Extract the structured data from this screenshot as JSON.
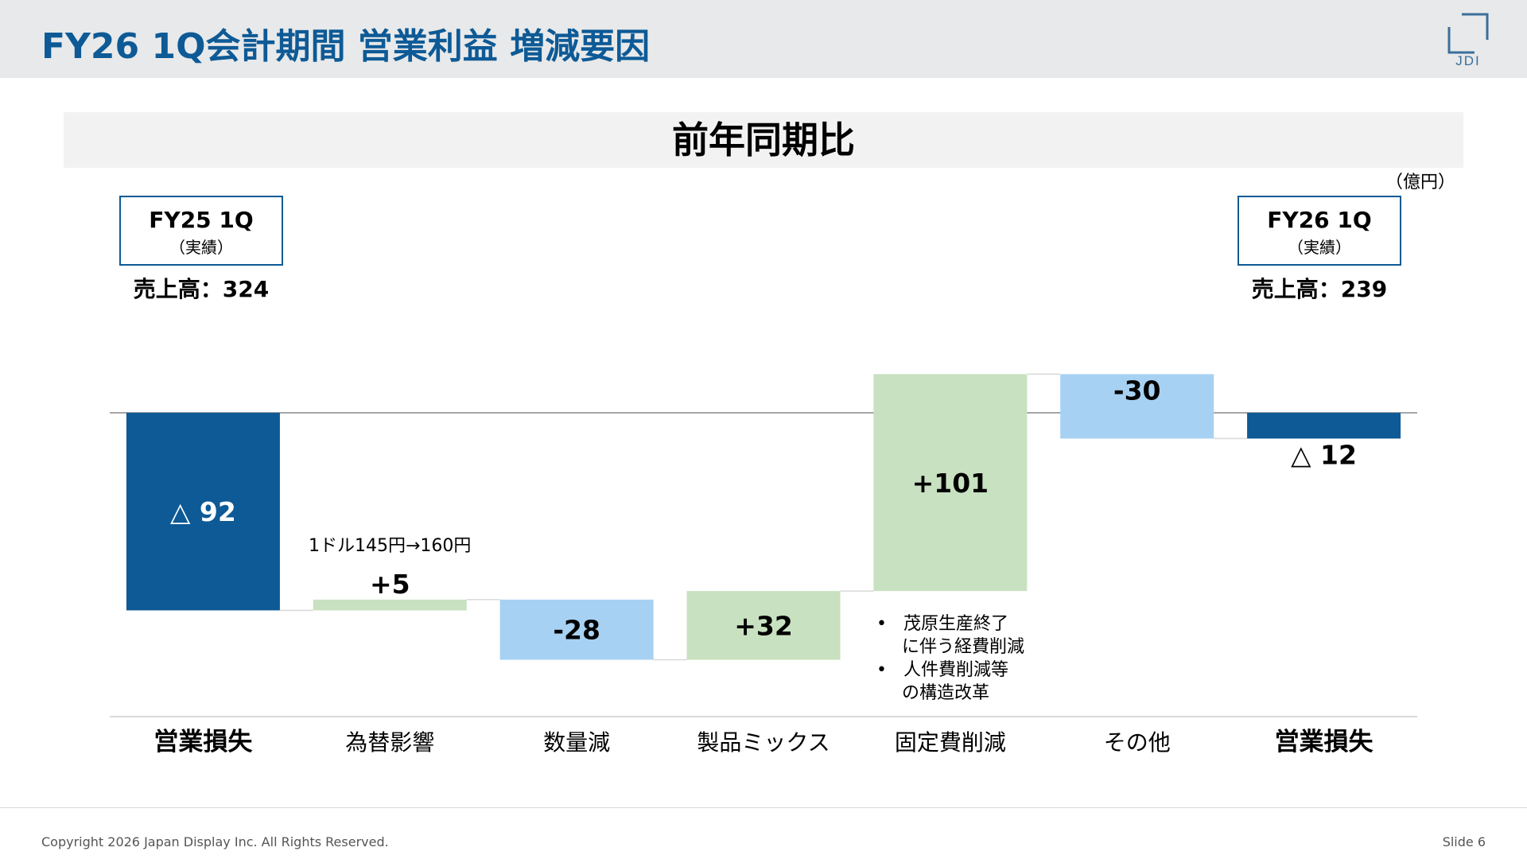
{
  "header": {
    "title": "FY26 1Q会計期間 営業利益 増減要因",
    "logo_text": "JDI"
  },
  "subtitle": "前年同期比",
  "unit_label": "（億円）",
  "start_period": {
    "name": "FY25 1Q",
    "note": "（実績）",
    "sales": "売上高：324"
  },
  "end_period": {
    "name": "FY26 1Q",
    "note": "（実績）",
    "sales": "売上高：239"
  },
  "fx_note": "1ドル145円→160円",
  "fixed_cost_notes": [
    "茂原生産終了",
    "に伴う経費削減",
    "人件費削減等",
    "の構造改革"
  ],
  "colors": {
    "total": "#0d5a96",
    "increase": "#c8e1c0",
    "decrease": "#a6d1f3",
    "brand": "#0d5a96"
  },
  "chart_data": {
    "type": "waterfall",
    "title": "前年同期比",
    "unit": "億円",
    "categories": [
      "営業損失",
      "為替影響",
      "数量減",
      "製品ミックス",
      "固定費削減",
      "その他",
      "営業損失"
    ],
    "values": [
      -92,
      5,
      -28,
      32,
      101,
      -30,
      -12
    ],
    "kinds": [
      "total",
      "increase",
      "decrease",
      "increase",
      "increase",
      "decrease",
      "total"
    ],
    "labels": [
      "△ 92",
      "+5",
      "-28",
      "+32",
      "+101",
      "-30",
      "△ 12"
    ],
    "ylim": [
      -140,
      20
    ],
    "zero_line": true
  },
  "footer": {
    "copyright": "Copyright 2026 Japan Display Inc. All Rights Reserved.",
    "slide": "Slide 6"
  }
}
